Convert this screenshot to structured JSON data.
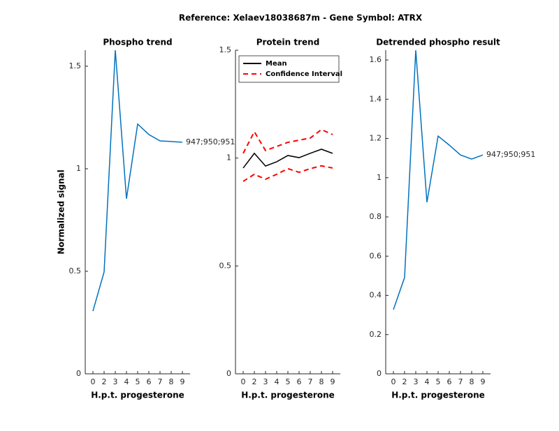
{
  "figure_title": "Reference:  Xelaev18038687m - Gene Symbol:  ATRX",
  "chart_data": [
    {
      "type": "line",
      "title": "Phospho trend",
      "xlabel": "H.p.t. progesterone",
      "ylabel": "Normalized signal",
      "categories": [
        "0",
        "2",
        "3",
        "4",
        "5",
        "6",
        "7",
        "8",
        "9"
      ],
      "ylim": [
        0,
        1.578
      ],
      "yticks": [
        0,
        0.5,
        1,
        1.5
      ],
      "series": [
        {
          "color": "#0072bd",
          "values": [
            0.306,
            0.497,
            1.578,
            0.854,
            1.218,
            1.167,
            1.136,
            1.133,
            1.129
          ]
        }
      ],
      "annotation": "947;950;951"
    },
    {
      "type": "line",
      "title": "Protein trend",
      "xlabel": "H.p.t. progesterone",
      "categories": [
        "0",
        "2",
        "3",
        "4",
        "5",
        "6",
        "7",
        "8",
        "9"
      ],
      "ylim": [
        0,
        1.5
      ],
      "yticks": [
        0,
        0.5,
        1,
        1.5
      ],
      "legend": "northeast",
      "series": [
        {
          "name": "Mean",
          "color": "#000000",
          "values": [
            0.954,
            1.022,
            0.963,
            0.983,
            1.012,
            1.002,
            1.022,
            1.041,
            1.022
          ]
        },
        {
          "name": "Confidence Interval",
          "color": "#ff0000",
          "dashed": true,
          "values": [
            1.022,
            1.122,
            1.035,
            1.054,
            1.073,
            1.083,
            1.093,
            1.132,
            1.109
          ],
          "values_lower": [
            0.892,
            0.925,
            0.902,
            0.925,
            0.951,
            0.934,
            0.951,
            0.964,
            0.954
          ]
        }
      ]
    },
    {
      "type": "line",
      "title": "Detrended phospho result",
      "xlabel": "H.p.t. progesterone",
      "categories": [
        "0",
        "2",
        "3",
        "4",
        "5",
        "6",
        "7",
        "8",
        "9"
      ],
      "ylim": [
        0,
        1.65
      ],
      "yticks": [
        0,
        0.2,
        0.4,
        0.6,
        0.8,
        1,
        1.2,
        1.4,
        1.6
      ],
      "series": [
        {
          "color": "#0072bd",
          "values": [
            0.327,
            0.491,
            1.65,
            0.875,
            1.212,
            1.166,
            1.116,
            1.095,
            1.116
          ]
        }
      ],
      "annotation": "947;950;951"
    }
  ]
}
